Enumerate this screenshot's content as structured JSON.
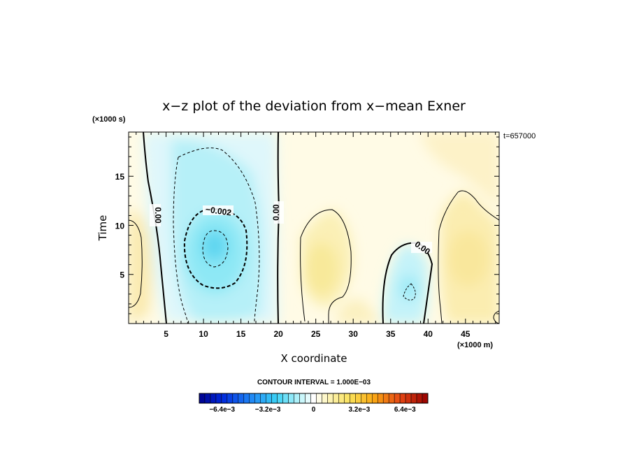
{
  "chart_data": {
    "type": "contour",
    "title": "x−z plot of the deviation from x−mean Exner",
    "xlabel": "X coordinate",
    "ylabel": "Time",
    "x_scale_label": "(×1000 m)",
    "y_scale_label": "(×1000 s)",
    "time_label": "t=657000",
    "xlim": [
      0,
      49.5
    ],
    "ylim": [
      0,
      19.5
    ],
    "x_ticks": [
      "5",
      "10",
      "15",
      "20",
      "25",
      "30",
      "35",
      "40",
      "45"
    ],
    "y_ticks": [
      "5",
      "10",
      "15"
    ],
    "contour_interval_text": "CONTOUR INTERVAL = 1.000E−03",
    "contour_interval": 0.001,
    "contour_labels": [
      "0.00",
      "−0.002",
      "0.00",
      "0.00"
    ],
    "colorbar": {
      "min": -0.008,
      "max": 0.008,
      "tick_labels": [
        "−6.4e−3",
        "−3.2e−3",
        "0",
        "3.2e−3",
        "6.4e−3"
      ],
      "tick_values": [
        -0.0064,
        -0.0032,
        0,
        0.0032,
        0.0064
      ]
    },
    "features": [
      {
        "kind": "minimum",
        "x": 11.5,
        "y": 8.5,
        "value": -0.0035
      },
      {
        "kind": "minimum",
        "x": 38,
        "y": 3.2,
        "value": -0.0015
      },
      {
        "kind": "maximum",
        "x": 27,
        "y": 7.5,
        "value": 0.0012
      },
      {
        "kind": "maximum",
        "x": 47,
        "y": 8,
        "value": 0.0015
      },
      {
        "kind": "maximum",
        "x": 2,
        "y": 6,
        "value": 0.0008
      }
    ]
  }
}
